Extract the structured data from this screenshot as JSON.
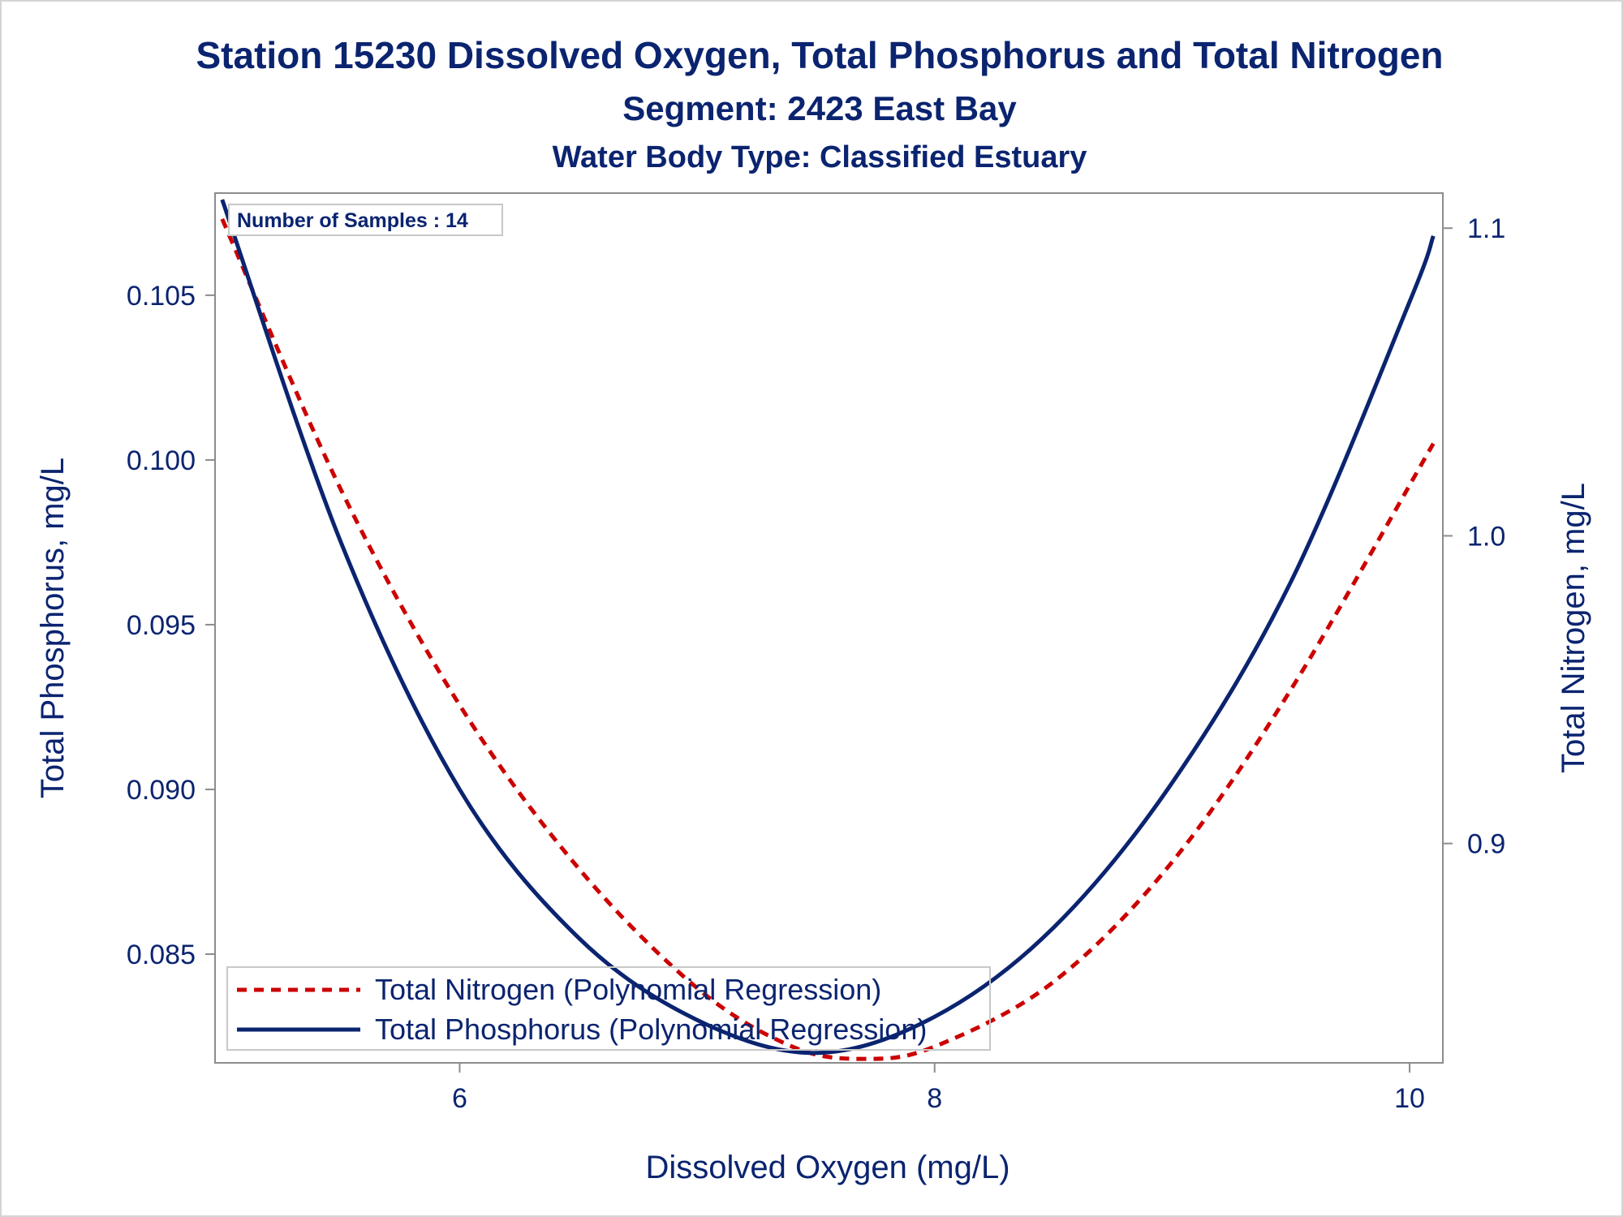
{
  "chart_data": {
    "type": "line",
    "title": "Station 15230  Dissolved Oxygen, Total Phosphorus and Total Nitrogen",
    "subtitle": "Segment: 2423  East Bay",
    "subtitle2": "Water Body Type: Classified Estuary",
    "xlabel": "Dissolved Oxygen (mg/L)",
    "ylabel_left": "Total Phosphorus, mg/L",
    "ylabel_right": "Total Nitrogen, mg/L",
    "annotation": "Number of Samples : 14",
    "xlim": [
      4.97,
      10.14
    ],
    "ylim_left": [
      0.0817,
      0.1081
    ],
    "ylim_right": [
      0.8287,
      1.1114
    ],
    "x_ticks": [
      {
        "value": 6,
        "label": "6"
      },
      {
        "value": 8,
        "label": "8"
      },
      {
        "value": 10,
        "label": "10"
      }
    ],
    "y_left_ticks": [
      {
        "value": 0.085,
        "label": "0.085"
      },
      {
        "value": 0.09,
        "label": "0.090"
      },
      {
        "value": 0.095,
        "label": "0.095"
      },
      {
        "value": 0.1,
        "label": "0.100"
      },
      {
        "value": 0.105,
        "label": "0.105"
      }
    ],
    "y_right_ticks": [
      {
        "value": 0.9,
        "label": "0.9"
      },
      {
        "value": 1.0,
        "label": "1.0"
      },
      {
        "value": 1.1,
        "label": "1.1"
      }
    ],
    "legend_position": "bottom-left",
    "series": [
      {
        "name": "Total Nitrogen (Polynomial Regression)",
        "axis": "right",
        "color": "#cc0000",
        "style": "dashed",
        "x": [
          5.0,
          5.5,
          6.0,
          6.5,
          7.0,
          7.4,
          7.7,
          8.0,
          8.5,
          9.0,
          9.5,
          10.1
        ],
        "y": [
          1.103,
          1.015,
          0.945,
          0.892,
          0.853,
          0.834,
          0.83,
          0.834,
          0.855,
          0.894,
          0.95,
          1.03
        ]
      },
      {
        "name": "Total Phosphorus (Polynomial Regression)",
        "axis": "left",
        "color": "#0b2470",
        "style": "solid",
        "x": [
          5.0,
          5.5,
          6.0,
          6.5,
          7.0,
          7.5,
          8.0,
          8.5,
          9.0,
          9.5,
          10.0,
          10.1
        ],
        "y": [
          0.1079,
          0.0975,
          0.09,
          0.0855,
          0.083,
          0.082,
          0.0831,
          0.0858,
          0.0902,
          0.0963,
          0.1048,
          0.1068
        ]
      }
    ]
  }
}
